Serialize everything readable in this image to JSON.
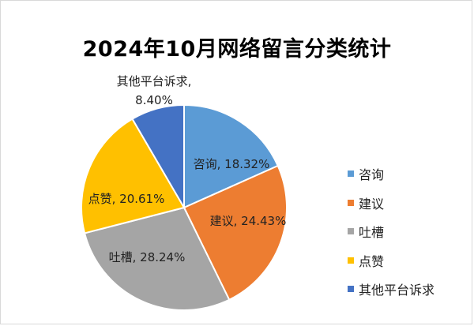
{
  "chart_data": {
    "type": "pie",
    "title": "2024年10月网络留言分类统计",
    "slices": [
      {
        "name": "咨询",
        "value": 18.32,
        "label": "咨询, 18.32%",
        "color": "#5B9BD5"
      },
      {
        "name": "建议",
        "value": 24.43,
        "label": "建议, 24.43%",
        "color": "#ED7D31"
      },
      {
        "name": "吐槽",
        "value": 28.24,
        "label": "吐槽, 28.24%",
        "color": "#A5A5A5"
      },
      {
        "name": "点赞",
        "value": 20.61,
        "label": "点赞, 20.61%",
        "color": "#FFC000"
      },
      {
        "name": "其他平台诉求",
        "value": 8.4,
        "label_line1": "其他平台诉求,",
        "label_line2": "8.40%",
        "color": "#4472C4"
      }
    ],
    "legend_position": "right",
    "start_angle": "top, clockwise"
  }
}
